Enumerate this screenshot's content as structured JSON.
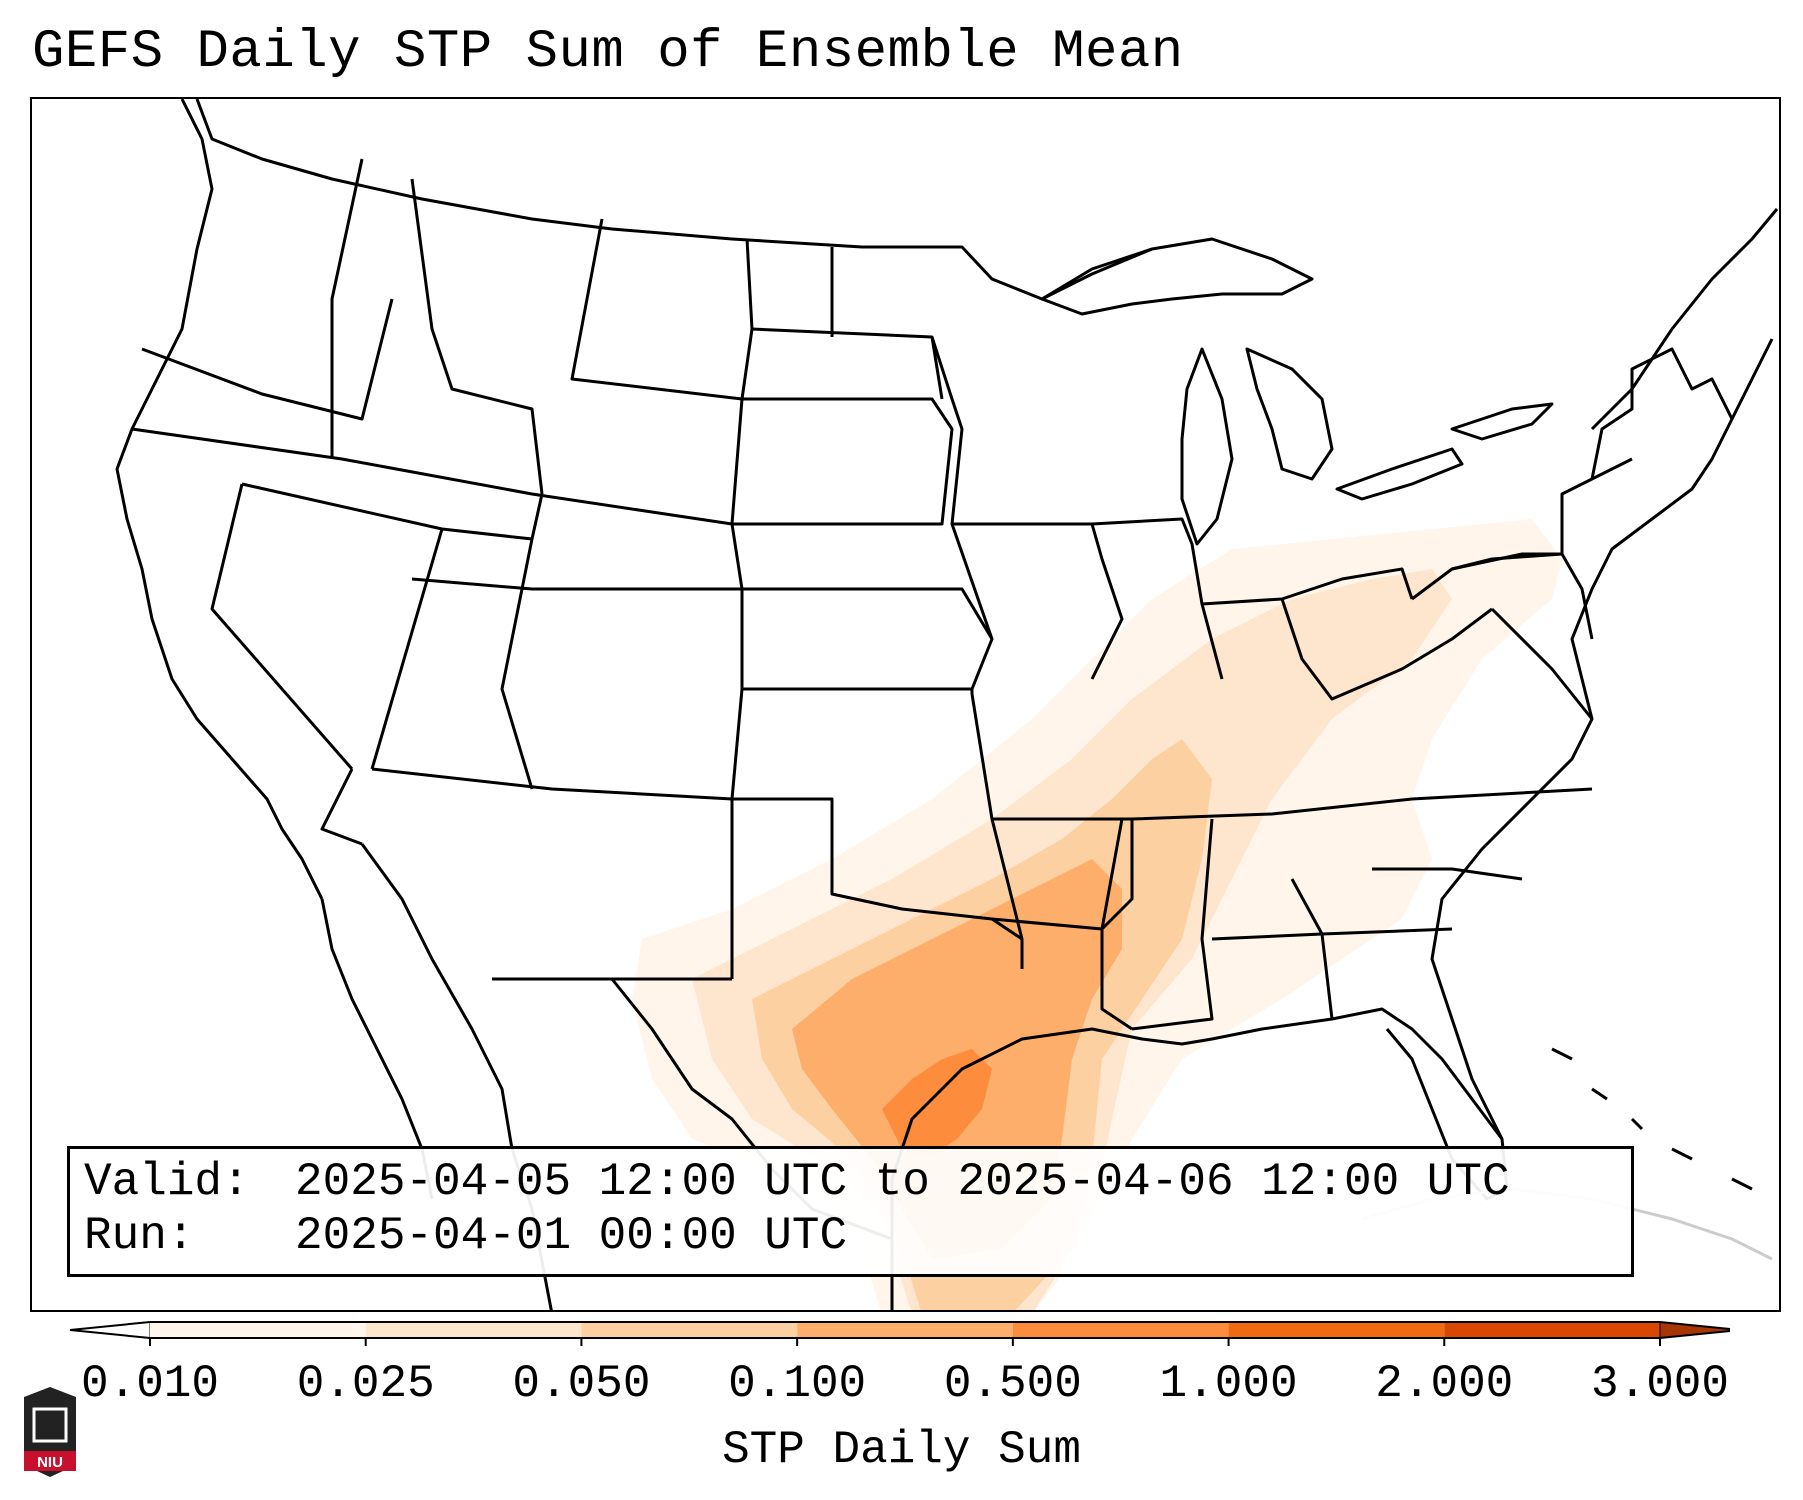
{
  "title": "GEFS Daily STP Sum of Ensemble Mean",
  "info": {
    "valid_label": "Valid:",
    "valid_value": "2025-04-05 12:00 UTC to 2025-04-06 12:00 UTC",
    "run_label": "Run:",
    "run_value": "2025-04-01 00:00 UTC"
  },
  "colorbar": {
    "label": "STP Daily Sum",
    "ticks": [
      "0.010",
      "0.025",
      "0.050",
      "0.100",
      "0.500",
      "1.000",
      "2.000",
      "3.000"
    ],
    "colors": [
      "#fff5eb",
      "#fee6ce",
      "#fdd0a2",
      "#fdae6b",
      "#fd8d3c",
      "#f16913",
      "#d94801",
      "#a63603"
    ]
  },
  "logo": {
    "text": "NIU"
  },
  "map": {
    "region": "Contiguous United States",
    "field": "STP daily sum, ensemble mean",
    "max_region": "South-central Texas and the western Gulf of Mexico",
    "max_value_range": "0.500 to 1.000"
  }
}
